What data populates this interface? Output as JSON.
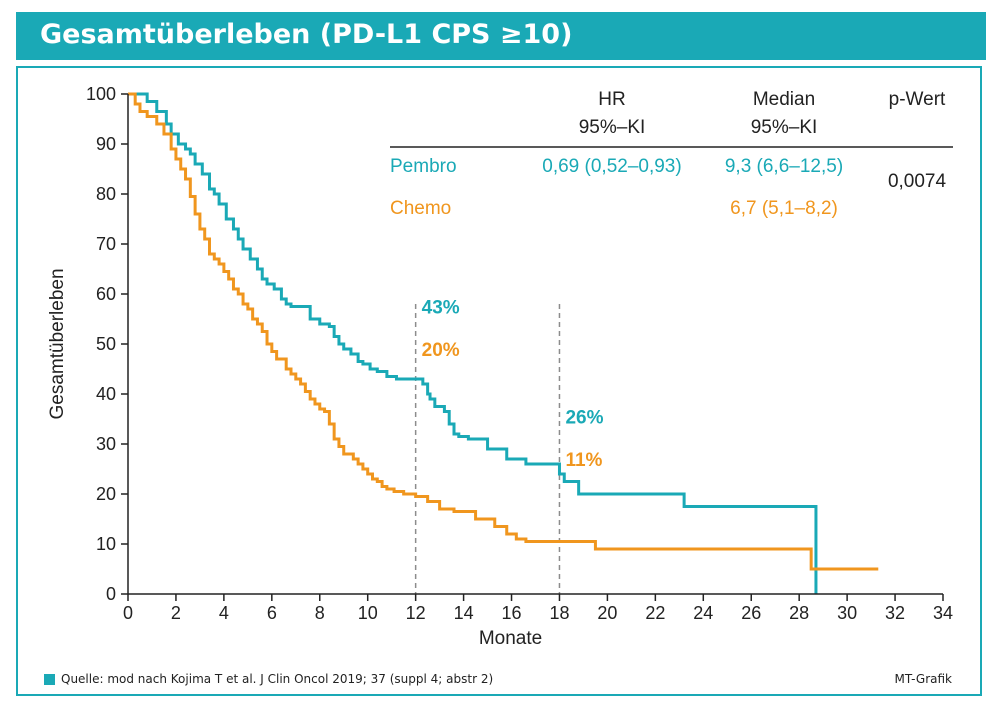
{
  "header": {
    "title": "Gesamtüberleben (PD-L1 CPS ≥10)"
  },
  "footer": {
    "source": "Quelle: mod nach Kojima T et al. J Clin Oncol 2019; 37 (suppl 4; abstr 2)",
    "credit": "MT-Grafik"
  },
  "colors": {
    "accent": "#1aa9b6",
    "pembro": "#1aa9b6",
    "chemo": "#f0961e",
    "guide": "#8c8c8c"
  },
  "table": {
    "hr_header": "HR",
    "hr_sub": "95%–KI",
    "median_header": "Median",
    "median_sub": "95%–KI",
    "p_header": "p-Wert",
    "rows": [
      {
        "name": "Pembro",
        "hr": "0,69 (0,52–0,93)",
        "median": "9,3 (6,6–12,5)"
      },
      {
        "name": "Chemo",
        "hr": "",
        "median": "6,7 (5,1–8,2)"
      }
    ],
    "p_value": "0,0074"
  },
  "chart_data": {
    "type": "line",
    "xlabel": "Monate",
    "ylabel": "Gesamtüberleben",
    "xlim": [
      0,
      34
    ],
    "ylim": [
      0,
      100
    ],
    "xticks": [
      0,
      2,
      4,
      6,
      8,
      10,
      12,
      14,
      16,
      18,
      20,
      22,
      24,
      26,
      28,
      30,
      32,
      34
    ],
    "yticks": [
      0,
      10,
      20,
      30,
      40,
      50,
      60,
      70,
      80,
      90,
      100
    ],
    "grid": false,
    "step": true,
    "series": [
      {
        "name": "Pembro",
        "color": "#1aa9b6",
        "x": [
          0,
          0.8,
          1.2,
          1.6,
          1.8,
          2.1,
          2.4,
          2.6,
          2.8,
          3.1,
          3.4,
          3.6,
          3.8,
          4.1,
          4.4,
          4.6,
          4.8,
          5.1,
          5.4,
          5.6,
          5.8,
          6.1,
          6.4,
          6.6,
          6.8,
          7.2,
          7.6,
          8.0,
          8.4,
          8.6,
          8.8,
          9.0,
          9.3,
          9.6,
          9.8,
          10.1,
          10.4,
          10.8,
          11.2,
          12.0,
          12.3,
          12.5,
          12.6,
          12.8,
          13.2,
          13.4,
          13.6,
          13.8,
          14.2,
          15.0,
          15.8,
          16.6,
          17.6,
          18.0,
          18.2,
          18.8,
          23.2,
          28.7,
          28.7
        ],
        "y": [
          100,
          98.5,
          96.5,
          94,
          92,
          90,
          89,
          88,
          86,
          84,
          81,
          80,
          78,
          75,
          73,
          71,
          69,
          67,
          65,
          63,
          62,
          61,
          59,
          58,
          57.5,
          57.5,
          55,
          54,
          53.5,
          51.5,
          50,
          49,
          48,
          46.5,
          46,
          45,
          44.5,
          43.5,
          43,
          43,
          42,
          40,
          39,
          37.5,
          36.5,
          34,
          32,
          31.5,
          31,
          29,
          27,
          26,
          26,
          24,
          22.5,
          20,
          17.5,
          17.5,
          0
        ]
      },
      {
        "name": "Chemo",
        "color": "#f0961e",
        "x": [
          0,
          0.3,
          0.5,
          0.8,
          1.2,
          1.5,
          1.8,
          2.0,
          2.2,
          2.4,
          2.6,
          2.8,
          3.0,
          3.2,
          3.4,
          3.6,
          3.8,
          4.0,
          4.2,
          4.4,
          4.6,
          4.8,
          5.0,
          5.2,
          5.4,
          5.6,
          5.8,
          6.0,
          6.2,
          6.6,
          6.8,
          7.0,
          7.2,
          7.4,
          7.6,
          7.8,
          8.0,
          8.2,
          8.4,
          8.6,
          8.8,
          9.0,
          9.4,
          9.6,
          9.8,
          10.0,
          10.2,
          10.4,
          10.6,
          10.8,
          11.1,
          11.5,
          12.0,
          12.5,
          13.0,
          13.6,
          14.5,
          15.3,
          15.8,
          16.2,
          16.6,
          19.5,
          28.5,
          28.5,
          31.3
        ],
        "y": [
          100,
          98,
          96.5,
          95.5,
          94,
          92,
          89,
          87,
          85,
          83,
          79.5,
          76,
          73,
          71,
          68,
          67,
          66,
          64.5,
          63,
          61,
          60,
          58,
          57,
          55,
          54,
          52.5,
          50,
          48.5,
          47,
          45,
          44,
          43,
          42,
          40.5,
          39,
          38,
          37,
          36.5,
          34,
          31,
          29.5,
          28,
          27,
          26,
          25,
          24,
          23,
          22.5,
          21.5,
          21,
          20.5,
          20,
          19.5,
          18.5,
          17,
          16.5,
          15,
          13.5,
          12,
          11,
          10.5,
          9,
          9,
          5,
          5
        ]
      }
    ],
    "guides": [
      {
        "x": 12,
        "labels": [
          {
            "text": "43%",
            "series": "Pembro"
          },
          {
            "text": "20%",
            "series": "Chemo"
          }
        ]
      },
      {
        "x": 18,
        "labels": [
          {
            "text": "26%",
            "series": "Pembro"
          },
          {
            "text": "11%",
            "series": "Chemo"
          }
        ]
      }
    ]
  }
}
